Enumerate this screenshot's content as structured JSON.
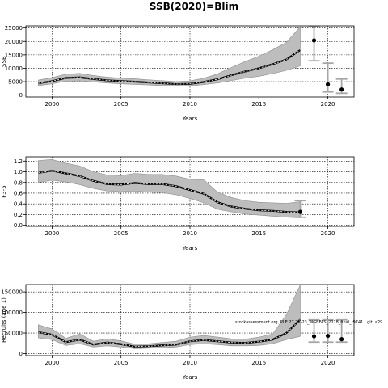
{
  "title": "SSB(2020)=Blim",
  "note": "stockassessment.org, PLE.27.21-23_WGBFAS_2018_final_r9741 , git: a29",
  "colors": {
    "band": "#bdbdbd",
    "band_edge": "#8f8f8f",
    "line": "#000000",
    "point": "#000000",
    "proj_bar": "#a6a6a6",
    "grid": "#000000"
  },
  "chart_data": [
    {
      "type": "line",
      "name": "ssb",
      "xlabel": "Years",
      "ylabel": "SSB",
      "xlim": [
        1998.1,
        2021.9
      ],
      "ylim": [
        -700,
        25800
      ],
      "xticks": [
        2000,
        2005,
        2010,
        2015,
        2020
      ],
      "yticks": [
        0,
        5000,
        10000,
        15000,
        20000,
        25000
      ],
      "x": [
        1999,
        2000,
        2001,
        2002,
        2003,
        2004,
        2005,
        2006,
        2007,
        2008,
        2009,
        2010,
        2011,
        2012,
        2013,
        2014,
        2015,
        2016,
        2017,
        2018
      ],
      "estimate": [
        4400,
        5200,
        6400,
        6600,
        6000,
        5500,
        5200,
        5000,
        4700,
        4400,
        4100,
        4200,
        4900,
        5900,
        7400,
        8800,
        10000,
        11500,
        13300,
        16800
      ],
      "upper": [
        5600,
        6500,
        7800,
        8100,
        7300,
        6700,
        6300,
        6100,
        5700,
        5400,
        5000,
        5300,
        6300,
        7900,
        10300,
        12500,
        14500,
        16900,
        19700,
        25500
      ],
      "lower": [
        3500,
        4200,
        5200,
        5300,
        4900,
        4500,
        4200,
        4000,
        3800,
        3500,
        3300,
        3400,
        3900,
        4500,
        5400,
        6300,
        7000,
        8000,
        9200,
        10900
      ],
      "projection": {
        "x": [
          2019,
          2020,
          2021
        ],
        "estimate": [
          20400,
          4000,
          2100
        ],
        "lower": [
          12800,
          1200,
          700
        ],
        "upper": [
          25500,
          11900,
          6000
        ]
      }
    },
    {
      "type": "line",
      "name": "fbar",
      "xlabel": "Years",
      "ylabel": "F3-5",
      "xlim": [
        1998.1,
        2021.9
      ],
      "ylim": [
        -0.02,
        1.28
      ],
      "xticks": [
        2000,
        2005,
        2010,
        2015,
        2020
      ],
      "yticks": [
        0.0,
        0.2,
        0.4,
        0.6,
        0.8,
        1.0,
        1.2
      ],
      "x": [
        1999,
        2000,
        2001,
        2002,
        2003,
        2004,
        2005,
        2006,
        2007,
        2008,
        2009,
        2010,
        2011,
        2012,
        2013,
        2014,
        2015,
        2016,
        2017,
        2018
      ],
      "estimate": [
        0.98,
        1.02,
        0.97,
        0.92,
        0.83,
        0.77,
        0.76,
        0.79,
        0.77,
        0.77,
        0.73,
        0.66,
        0.59,
        0.43,
        0.35,
        0.31,
        0.28,
        0.27,
        0.25,
        0.24
      ],
      "upper": [
        1.21,
        1.23,
        1.16,
        1.11,
        1.0,
        0.94,
        0.93,
        0.97,
        0.95,
        0.95,
        0.92,
        0.86,
        0.85,
        0.62,
        0.52,
        0.46,
        0.43,
        0.42,
        0.41,
        0.44
      ],
      "lower": [
        0.8,
        0.84,
        0.81,
        0.76,
        0.69,
        0.64,
        0.63,
        0.64,
        0.62,
        0.61,
        0.57,
        0.5,
        0.42,
        0.3,
        0.25,
        0.21,
        0.19,
        0.17,
        0.15,
        0.14
      ],
      "projection": {
        "x": [
          2018
        ],
        "estimate": [
          0.25
        ],
        "lower": [
          0.15
        ],
        "upper": [
          0.46
        ]
      }
    },
    {
      "type": "line",
      "name": "recruits",
      "xlabel": "Years",
      "ylabel": "Recruits (age 1)",
      "xlim": [
        1998.1,
        2021.9
      ],
      "ylim": [
        -5000,
        168000
      ],
      "xticks": [
        2000,
        2005,
        2010,
        2015,
        2020
      ],
      "yticks": [
        0,
        50000,
        100000,
        150000
      ],
      "x": [
        1999,
        2000,
        2001,
        2002,
        2003,
        2004,
        2005,
        2006,
        2007,
        2008,
        2009,
        2010,
        2011,
        2012,
        2013,
        2014,
        2015,
        2016,
        2017,
        2018
      ],
      "estimate": [
        52000,
        46000,
        28000,
        34000,
        22000,
        27000,
        23000,
        17000,
        18000,
        20000,
        22000,
        30000,
        33000,
        30000,
        27000,
        26000,
        29000,
        34000,
        50000,
        83000
      ],
      "upper": [
        70000,
        60000,
        37000,
        48000,
        30000,
        36000,
        31000,
        23000,
        24000,
        27000,
        30000,
        40000,
        44000,
        40000,
        36000,
        35000,
        40000,
        48000,
        95000,
        167000
      ],
      "lower": [
        38000,
        34000,
        20000,
        24000,
        16000,
        19000,
        16000,
        12000,
        13000,
        14000,
        16000,
        22000,
        24000,
        22000,
        19000,
        19000,
        20000,
        24000,
        34000,
        42000
      ],
      "projection": {
        "x": [
          2019,
          2020,
          2021
        ],
        "estimate": [
          42000,
          43000,
          35000
        ],
        "lower": [
          28000,
          28000,
          28000
        ],
        "upper": [
          82000,
          82000,
          82000
        ]
      }
    }
  ]
}
